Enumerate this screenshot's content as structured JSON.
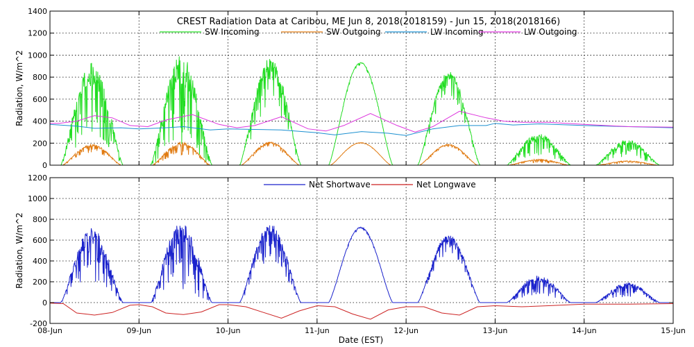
{
  "chart_data": {
    "title": "CREST Radiation Data at Caribou, ME   Jun  8, 2018(2018159) - Jun 15, 2018(2018166)",
    "xlabel": "Date (EST)",
    "x_ticks": [
      "08-Jun",
      "09-Jun",
      "10-Jun",
      "11-Jun",
      "12-Jun",
      "13-Jun",
      "14-Jun",
      "15-Jun"
    ],
    "x_range_days": [
      0,
      7
    ],
    "panels": [
      {
        "type": "line",
        "ylabel": "Radiation, W/m^2",
        "ylim": [
          0,
          1400
        ],
        "y_ticks": [
          0,
          200,
          400,
          600,
          800,
          1000,
          1200,
          1400
        ],
        "grid": true,
        "legend_placement": "top",
        "series": [
          {
            "name": "SW Incoming",
            "color": "#22dd22",
            "days": [
              {
                "start": 0.12,
                "end": 0.82,
                "peak": 930,
                "noise": 0.45
              },
              {
                "start": 1.13,
                "end": 1.82,
                "peak": 1000,
                "noise": 0.55
              },
              {
                "start": 2.13,
                "end": 2.82,
                "peak": 975,
                "noise": 0.3
              },
              {
                "start": 3.13,
                "end": 3.85,
                "peak": 935,
                "noise": 0.02
              },
              {
                "start": 4.13,
                "end": 4.83,
                "peak": 850,
                "noise": 0.18
              },
              {
                "start": 5.13,
                "end": 5.85,
                "peak": 290,
                "noise": 0.45
              },
              {
                "start": 6.13,
                "end": 6.85,
                "peak": 230,
                "noise": 0.45
              }
            ]
          },
          {
            "name": "SW Outgoing",
            "color": "#e07a10",
            "days": [
              {
                "start": 0.14,
                "end": 0.8,
                "peak": 190,
                "noise": 0.25
              },
              {
                "start": 1.15,
                "end": 1.8,
                "peak": 210,
                "noise": 0.35
              },
              {
                "start": 2.15,
                "end": 2.8,
                "peak": 210,
                "noise": 0.15
              },
              {
                "start": 3.15,
                "end": 3.83,
                "peak": 205,
                "noise": 0.02
              },
              {
                "start": 4.15,
                "end": 4.8,
                "peak": 190,
                "noise": 0.1
              },
              {
                "start": 5.15,
                "end": 5.83,
                "peak": 55,
                "noise": 0.4
              },
              {
                "start": 6.15,
                "end": 6.83,
                "peak": 40,
                "noise": 0.4
              }
            ]
          },
          {
            "name": "LW Incoming",
            "color": "#1a8fd0",
            "x": [
              0,
              0.3,
              0.5,
              0.8,
              1.0,
              1.3,
              1.5,
              1.8,
              2.0,
              2.3,
              2.6,
              3.0,
              3.2,
              3.5,
              3.8,
              4.0,
              4.3,
              4.6,
              4.9,
              5.0,
              5.2,
              5.5,
              6.0,
              6.5,
              7.0
            ],
            "values": [
              370,
              355,
              335,
              340,
              330,
              340,
              350,
              320,
              330,
              325,
              320,
              295,
              275,
              305,
              290,
              270,
              330,
              360,
              360,
              380,
              365,
              375,
              360,
              350,
              340
            ]
          },
          {
            "name": "LW Outgoing",
            "color": "#dd33dd",
            "x": [
              0,
              0.1,
              0.3,
              0.5,
              0.7,
              0.9,
              1.1,
              1.3,
              1.6,
              1.9,
              2.1,
              2.3,
              2.6,
              2.9,
              3.1,
              3.3,
              3.6,
              3.9,
              4.1,
              4.3,
              4.6,
              4.9,
              5.1,
              5.3,
              5.6,
              6.0,
              6.5,
              7.0
            ],
            "values": [
              380,
              380,
              400,
              450,
              430,
              360,
              350,
              410,
              460,
              370,
              340,
              360,
              440,
              330,
              310,
              360,
              470,
              360,
              300,
              350,
              490,
              430,
              400,
              390,
              390,
              370,
              350,
              345
            ]
          }
        ]
      },
      {
        "type": "line",
        "ylabel": "Radiation, W/m^2",
        "ylim": [
          -200,
          1200
        ],
        "y_ticks": [
          -200,
          0,
          200,
          400,
          600,
          800,
          1000,
          1200
        ],
        "grid": true,
        "legend_placement": "top",
        "series": [
          {
            "name": "Net Shortwave",
            "color": "#1a22cc",
            "days": [
              {
                "start": 0.12,
                "end": 0.82,
                "peak": 720,
                "noise": 0.45
              },
              {
                "start": 1.13,
                "end": 1.82,
                "peak": 770,
                "noise": 0.55
              },
              {
                "start": 2.13,
                "end": 2.82,
                "peak": 760,
                "noise": 0.3
              },
              {
                "start": 3.13,
                "end": 3.85,
                "peak": 725,
                "noise": 0.02
              },
              {
                "start": 4.13,
                "end": 4.83,
                "peak": 650,
                "noise": 0.18
              },
              {
                "start": 5.13,
                "end": 5.85,
                "peak": 260,
                "noise": 0.45
              },
              {
                "start": 6.13,
                "end": 6.85,
                "peak": 190,
                "noise": 0.45
              }
            ]
          },
          {
            "name": "Net Longwave",
            "color": "#cc2222",
            "x": [
              0,
              0.15,
              0.3,
              0.5,
              0.7,
              0.9,
              1.0,
              1.15,
              1.3,
              1.5,
              1.7,
              1.9,
              2.0,
              2.2,
              2.4,
              2.6,
              2.8,
              3.0,
              3.2,
              3.4,
              3.6,
              3.8,
              4.0,
              4.2,
              4.4,
              4.6,
              4.8,
              5.0,
              5.3,
              5.6,
              6.0,
              6.5,
              7.0
            ],
            "values": [
              -5,
              -10,
              -100,
              -120,
              -95,
              -25,
              -20,
              -40,
              -100,
              -115,
              -90,
              -20,
              -20,
              -40,
              -95,
              -150,
              -80,
              -30,
              -40,
              -110,
              -160,
              -70,
              -40,
              -40,
              -100,
              -120,
              -40,
              -30,
              -40,
              -30,
              -15,
              -15,
              -10
            ]
          }
        ]
      }
    ]
  }
}
